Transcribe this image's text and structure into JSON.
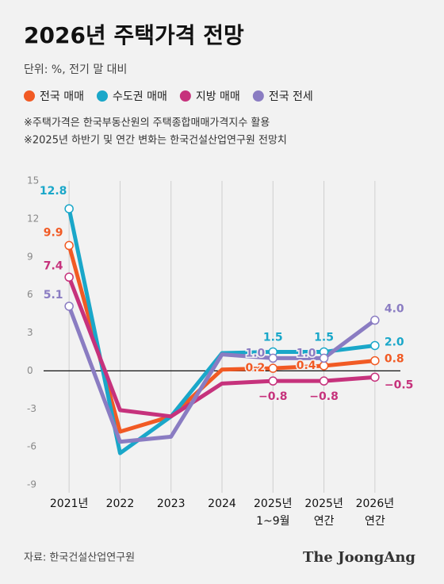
{
  "chart_data": {
    "type": "line",
    "title": "2026년 주택가격 전망",
    "subtitle": "단위: %, 전기 말 대비",
    "notes": [
      "※주택가격은 한국부동산원의 주택종합매매가격지수 활용",
      "※2025년 하반기 및 연간 변화는 한국건설산업연구원 전망치"
    ],
    "source": "자료: 한국건설산업연구원",
    "brand": "The JoongAng",
    "categories": [
      "2021년",
      "2022",
      "2023",
      "2024",
      "2025년 1~9월",
      "2025년 연간",
      "2026년 연간"
    ],
    "series": [
      {
        "name": "전국 매매",
        "color": "#f15a24",
        "values": [
          9.9,
          -4.8,
          -3.6,
          0.1,
          0.2,
          0.4,
          0.8
        ],
        "value_labels": [
          "9.9",
          null,
          null,
          null,
          "0.2",
          "0.4",
          "0.8"
        ]
      },
      {
        "name": "수도권 매매",
        "color": "#1aa7c9",
        "values": [
          12.8,
          -6.5,
          -3.6,
          1.4,
          1.5,
          1.5,
          2.0
        ],
        "value_labels": [
          "12.8",
          null,
          null,
          null,
          "1.5",
          "1.5",
          "2.0"
        ]
      },
      {
        "name": "지방 매매",
        "color": "#c6327c",
        "values": [
          7.4,
          -3.1,
          -3.6,
          -1.0,
          -0.8,
          -0.8,
          -0.5
        ],
        "value_labels": [
          "7.4",
          null,
          null,
          null,
          "−0.8",
          "−0.8",
          "−0.5"
        ]
      },
      {
        "name": "전국 전세",
        "color": "#8a7cc2",
        "values": [
          5.1,
          -5.6,
          -5.2,
          1.3,
          1.0,
          1.0,
          4.0
        ],
        "value_labels": [
          "5.1",
          null,
          null,
          null,
          "1.0",
          "1.0",
          "4.0"
        ]
      }
    ],
    "ylim": [
      -9,
      15
    ],
    "yticks": [
      -9,
      -6,
      -3,
      0,
      3,
      6,
      9,
      12,
      15
    ],
    "grid": "vertical"
  }
}
